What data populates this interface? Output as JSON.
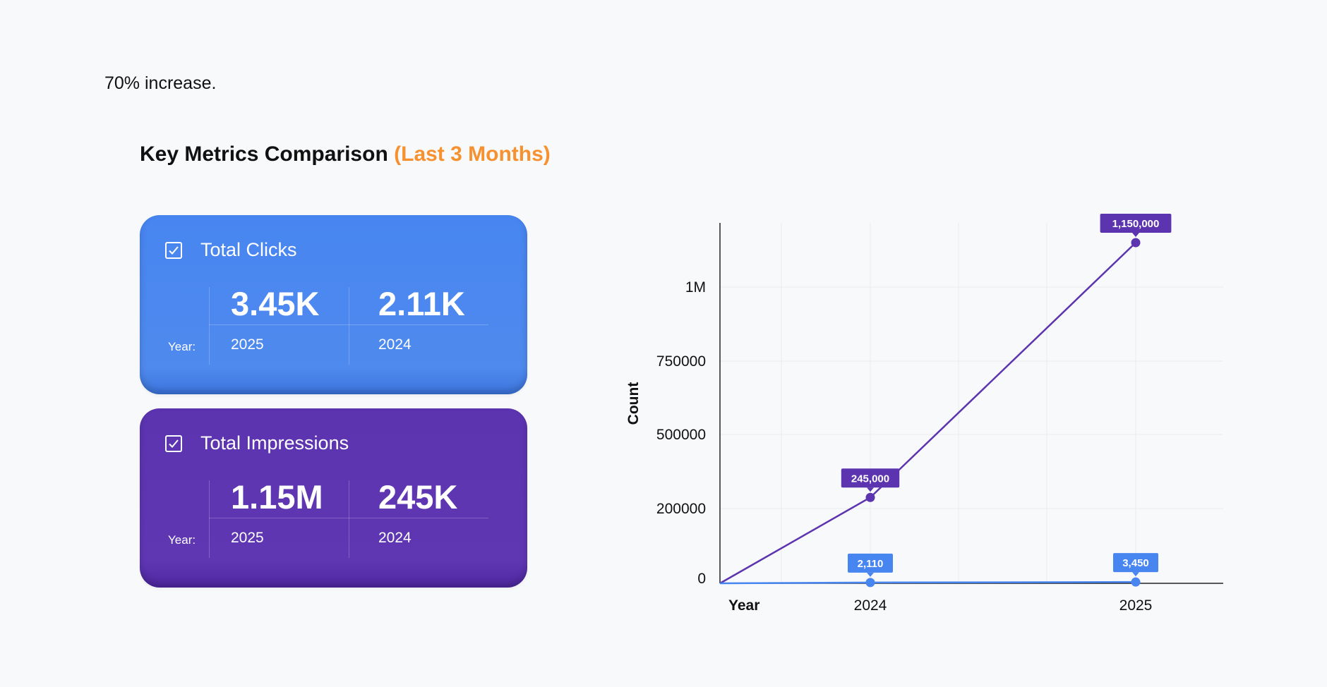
{
  "intro_text": "70% increase.",
  "section": {
    "title": "Key Metrics Comparison",
    "title_accent": "(Last 3 Months)"
  },
  "cards": [
    {
      "label": "Total Clicks",
      "year_label": "Year:",
      "icon": "checkbox-checked-icon",
      "color": "#4785f0",
      "values": [
        {
          "value": "3.45K",
          "year": "2025"
        },
        {
          "value": "2.11K",
          "year": "2024"
        }
      ]
    },
    {
      "label": "Total Impressions",
      "year_label": "Year:",
      "icon": "checkbox-checked-icon",
      "color": "#5c34b0",
      "values": [
        {
          "value": "1.15M",
          "year": "2025"
        },
        {
          "value": "245K",
          "year": "2024"
        }
      ]
    }
  ],
  "chart_data": {
    "type": "line",
    "xlabel": "Year",
    "ylabel": "Count",
    "x": [
      "2024",
      "2025"
    ],
    "y_ticks": [
      {
        "value": 0,
        "label": "0"
      },
      {
        "value": 200000,
        "label": "200000"
      },
      {
        "value": 500000,
        "label": "500000"
      },
      {
        "value": 750000,
        "label": "750000"
      },
      {
        "value": 1000000,
        "label": "1M"
      }
    ],
    "grid": true,
    "series": [
      {
        "color": "#5c34b0",
        "values": [
          245000,
          1150000
        ],
        "labels": [
          "245,000",
          "1,150,000"
        ]
      },
      {
        "color": "#4785f0",
        "values": [
          2110,
          3450
        ],
        "labels": [
          "2,110",
          "3,450"
        ]
      }
    ]
  }
}
